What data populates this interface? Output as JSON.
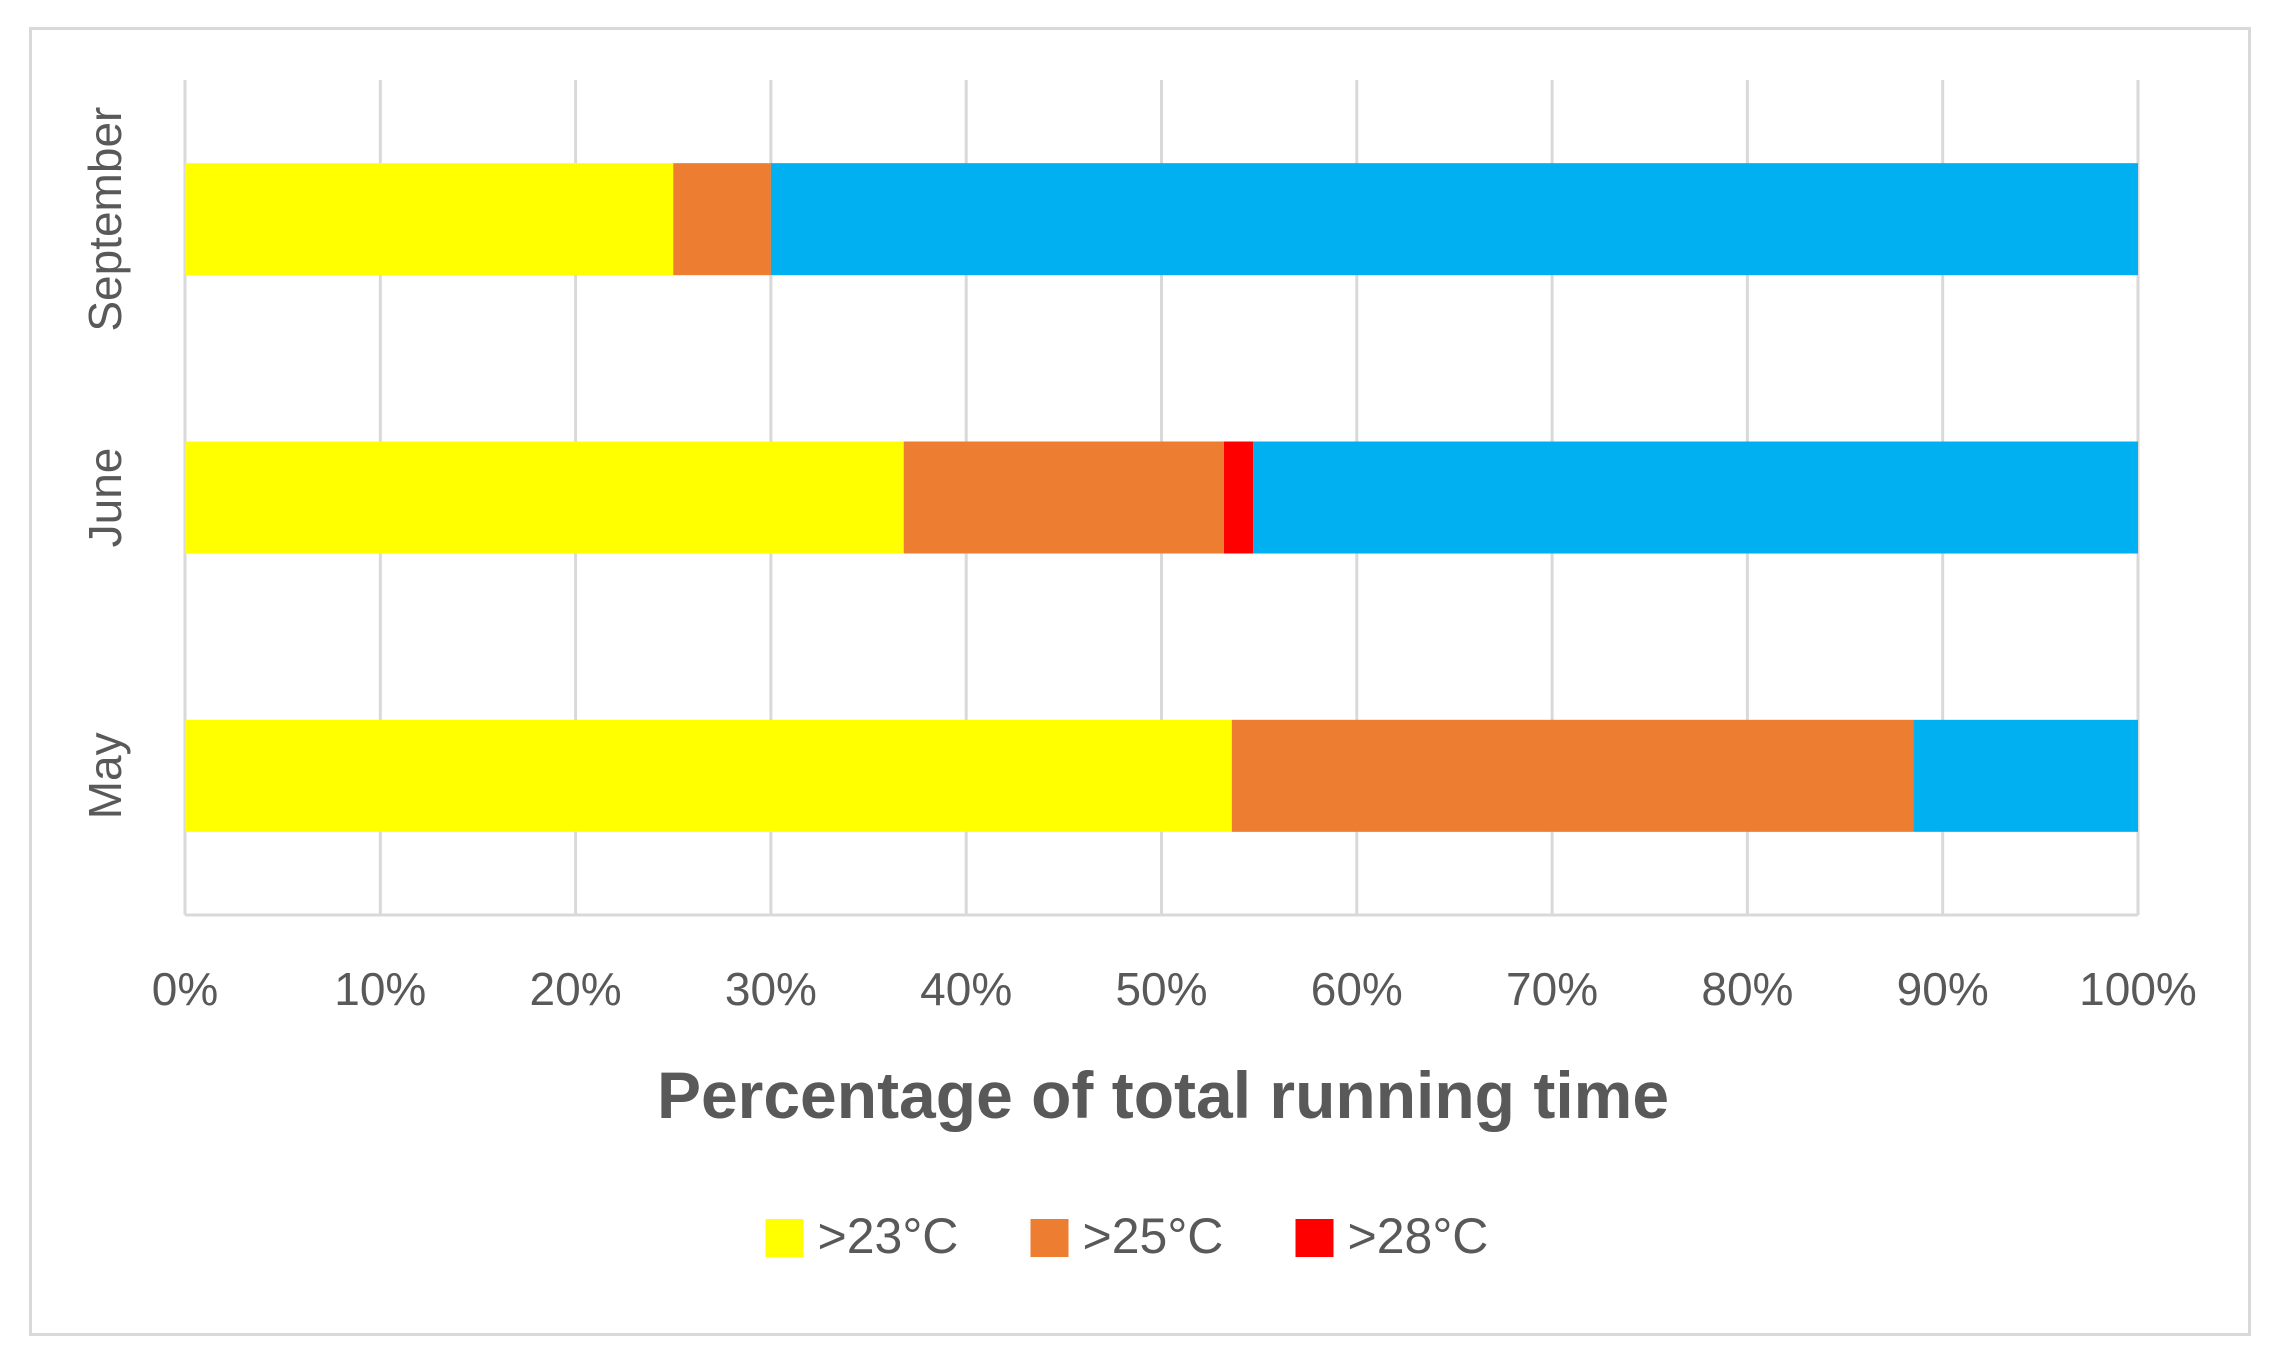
{
  "chart_data": {
    "type": "bar",
    "orientation": "horizontal",
    "stacked": true,
    "categories": [
      "May",
      "June",
      "September"
    ],
    "series": [
      {
        "name": ">23°C",
        "color": "#ffff00",
        "values": [
          53.6,
          36.8,
          25.0
        ]
      },
      {
        "name": ">25°C",
        "color": "#ed7d31",
        "values": [
          34.9,
          16.4,
          5.0
        ]
      },
      {
        "name": ">28°C",
        "color": "#ff0000",
        "values": [
          0,
          1.5,
          0
        ]
      },
      {
        "color": "#00b0f0",
        "values": [
          11.5,
          45.3,
          70.0
        ]
      }
    ],
    "xlim": [
      0,
      100
    ],
    "xticks": [
      "0%",
      "10%",
      "20%",
      "30%",
      "40%",
      "50%",
      "60%",
      "70%",
      "80%",
      "90%",
      "100%"
    ],
    "xlabel": "Percentage of total running time",
    "grid": true,
    "legend": "bottom"
  }
}
